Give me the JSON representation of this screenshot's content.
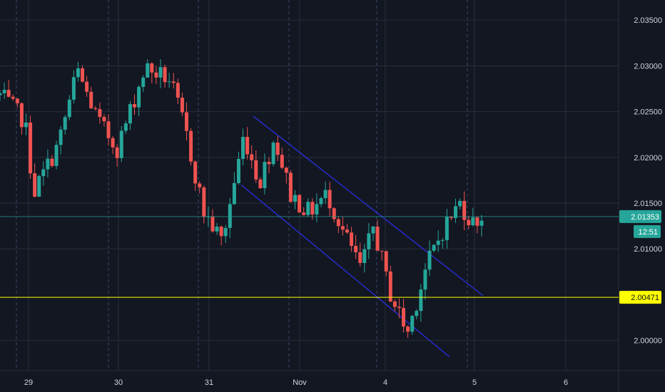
{
  "chart_data": {
    "type": "candlestick",
    "y_axis": {
      "ticks": [
        "2.03500",
        "2.03000",
        "2.02500",
        "2.02000",
        "2.01500",
        "2.01000",
        "2.00000"
      ],
      "tick_values": [
        2.035,
        2.03,
        2.025,
        2.02,
        2.015,
        2.01,
        2.0
      ],
      "range": [
        1.9967,
        2.0372
      ],
      "position": "right"
    },
    "x_axis": {
      "ticks": [
        "29",
        "30",
        "31",
        "Nov",
        "4",
        "5",
        "6"
      ],
      "range": [
        0,
        1
      ]
    },
    "current_price": {
      "label": "2.01353",
      "value": 2.01353,
      "color": "#26a69a",
      "countdown": "12:51"
    },
    "horizontal_level": {
      "label": "2.00471",
      "value": 2.00471,
      "color": "#ffff00"
    },
    "channel": {
      "color": "#2a2ee0",
      "upper": [
        {
          "x": "Oct 31",
          "y": 2.0245
        },
        {
          "x": "Nov 5",
          "y": 2.0049
        }
      ],
      "lower": [
        {
          "x": "Oct 31",
          "y": 2.017
        },
        {
          "x": "Nov 4",
          "y": 1.9982
        }
      ]
    },
    "colors": {
      "up": "#26a69a",
      "down": "#ef5350",
      "grid": "#2a2e39",
      "background": "#131722"
    },
    "keypoints": [
      {
        "t": 0.0,
        "p": 2.0268
      },
      {
        "t": 0.04,
        "p": 2.024
      },
      {
        "t": 0.055,
        "p": 2.0162
      },
      {
        "t": 0.095,
        "p": 2.0215
      },
      {
        "t": 0.125,
        "p": 2.0295
      },
      {
        "t": 0.16,
        "p": 2.0238
      },
      {
        "t": 0.19,
        "p": 2.021
      },
      {
        "t": 0.235,
        "p": 2.0298
      },
      {
        "t": 0.275,
        "p": 2.0285
      },
      {
        "t": 0.3,
        "p": 2.023
      },
      {
        "t": 0.33,
        "p": 2.014
      },
      {
        "t": 0.36,
        "p": 2.0108
      },
      {
        "t": 0.395,
        "p": 2.0225
      },
      {
        "t": 0.42,
        "p": 2.0172
      },
      {
        "t": 0.445,
        "p": 2.0222
      },
      {
        "t": 0.47,
        "p": 2.016
      },
      {
        "t": 0.5,
        "p": 2.014
      },
      {
        "t": 0.53,
        "p": 2.016
      },
      {
        "t": 0.555,
        "p": 2.012
      },
      {
        "t": 0.585,
        "p": 2.0078
      },
      {
        "t": 0.605,
        "p": 2.0125
      },
      {
        "t": 0.63,
        "p": 2.0055
      },
      {
        "t": 0.66,
        "p": 2.0008
      },
      {
        "t": 0.69,
        "p": 2.008
      },
      {
        "t": 0.72,
        "p": 2.0125
      },
      {
        "t": 0.745,
        "p": 2.015
      },
      {
        "t": 0.765,
        "p": 2.0128
      },
      {
        "t": 0.78,
        "p": 2.0135
      }
    ]
  }
}
